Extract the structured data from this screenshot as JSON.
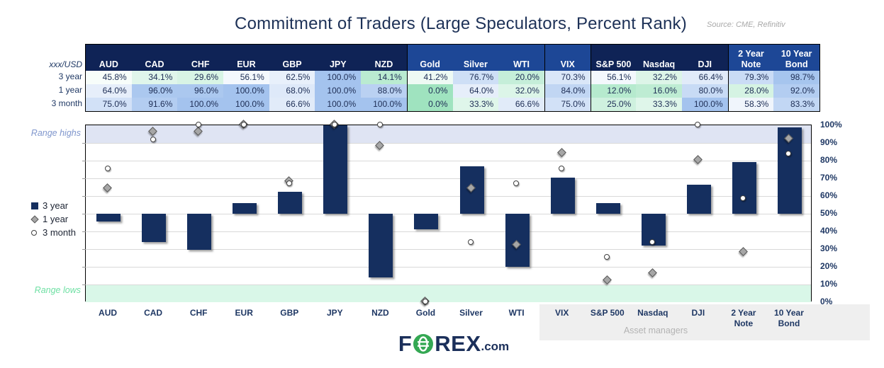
{
  "title": "Commitment of Traders (Large Speculators, Percent Rank)",
  "source": "Source: CME, Refinitiv",
  "logo": {
    "f": "F",
    "rex": "REX",
    "com": ".com"
  },
  "colors": {
    "navy_bar": "#152f5f",
    "header_dark": "#0f2356",
    "header_medium": "#1d4796",
    "text_navy": "#1f3864",
    "scale_low": "#9fe3bf",
    "scale_mid": "#ffffff",
    "scale_high": "#a4c3ee",
    "band_high": "#dfe4f3",
    "band_low": "#d9f7e8",
    "grid": "#d9d9d9",
    "diamond_fill": "#a6a6a6",
    "circle_fill": "#ffffff",
    "logo_green": "#34a853"
  },
  "table": {
    "corner_label": "xxx/USD",
    "groups": [
      {
        "shade": "dark",
        "columns": [
          "AUD",
          "CAD",
          "CHF",
          "EUR",
          "GBP",
          "JPY",
          "NZD"
        ]
      },
      {
        "shade": "medium",
        "columns": [
          "Gold",
          "Silver",
          "WTI"
        ]
      },
      {
        "shade": "medium",
        "columns": [
          "VIX"
        ]
      },
      {
        "shade": "dark",
        "columns": [
          "S&P 500",
          "Nasdaq",
          "DJI"
        ]
      },
      {
        "shade": "medium",
        "columns": [
          "2 Year Note",
          "10 Year Bond"
        ]
      }
    ],
    "rows": [
      {
        "label": "3 year",
        "values": [
          45.8,
          34.1,
          29.6,
          56.1,
          62.5,
          100.0,
          14.1,
          41.2,
          76.7,
          20.0,
          70.3,
          56.1,
          32.2,
          66.4,
          79.3,
          98.7
        ]
      },
      {
        "label": "1 year",
        "values": [
          64.0,
          96.0,
          96.0,
          100.0,
          68.0,
          100.0,
          88.0,
          0.0,
          64.0,
          32.0,
          84.0,
          12.0,
          16.0,
          80.0,
          28.0,
          92.0
        ]
      },
      {
        "label": "3 month",
        "values": [
          75.0,
          91.6,
          100.0,
          100.0,
          66.6,
          100.0,
          100.0,
          0.0,
          33.3,
          66.6,
          75.0,
          25.0,
          33.3,
          100.0,
          58.3,
          83.3
        ]
      }
    ],
    "value_format": "percent_1dp"
  },
  "chart_data": {
    "type": "bar",
    "title": "Commitment of Traders (Large Speculators, Percent Rank)",
    "categories": [
      "AUD",
      "CAD",
      "CHF",
      "EUR",
      "GBP",
      "JPY",
      "NZD",
      "Gold",
      "Silver",
      "WTI",
      "VIX",
      "S&P 500",
      "Nasdaq",
      "DJI",
      "2 Year Note",
      "10 Year Bond"
    ],
    "series": [
      {
        "name": "3 year",
        "marker": "bar",
        "values": [
          45.8,
          34.1,
          29.6,
          56.1,
          62.5,
          100.0,
          14.1,
          41.2,
          76.7,
          20.0,
          70.3,
          56.1,
          32.2,
          66.4,
          79.3,
          98.7
        ]
      },
      {
        "name": "1 year",
        "marker": "diamond",
        "values": [
          64.0,
          96.0,
          96.0,
          100.0,
          68.0,
          100.0,
          88.0,
          0.0,
          64.0,
          32.0,
          84.0,
          12.0,
          16.0,
          80.0,
          28.0,
          92.0
        ]
      },
      {
        "name": "3 month",
        "marker": "circle",
        "values": [
          75.0,
          91.6,
          100.0,
          100.0,
          66.6,
          100.0,
          100.0,
          0.0,
          33.3,
          66.6,
          75.0,
          25.0,
          33.3,
          100.0,
          58.3,
          83.3
        ]
      }
    ],
    "bar_baseline": 50,
    "ylim": [
      0,
      100
    ],
    "yticks": [
      "0%",
      "10%",
      "20%",
      "30%",
      "40%",
      "50%",
      "60%",
      "70%",
      "80%",
      "90%",
      "100%"
    ],
    "grid": "horizontal",
    "legend_position": "left",
    "bands": [
      {
        "label": "Range highs",
        "from": 90,
        "to": 100
      },
      {
        "label": "Range lows",
        "from": 0,
        "to": 10
      }
    ],
    "annotation": "Asset managers"
  }
}
